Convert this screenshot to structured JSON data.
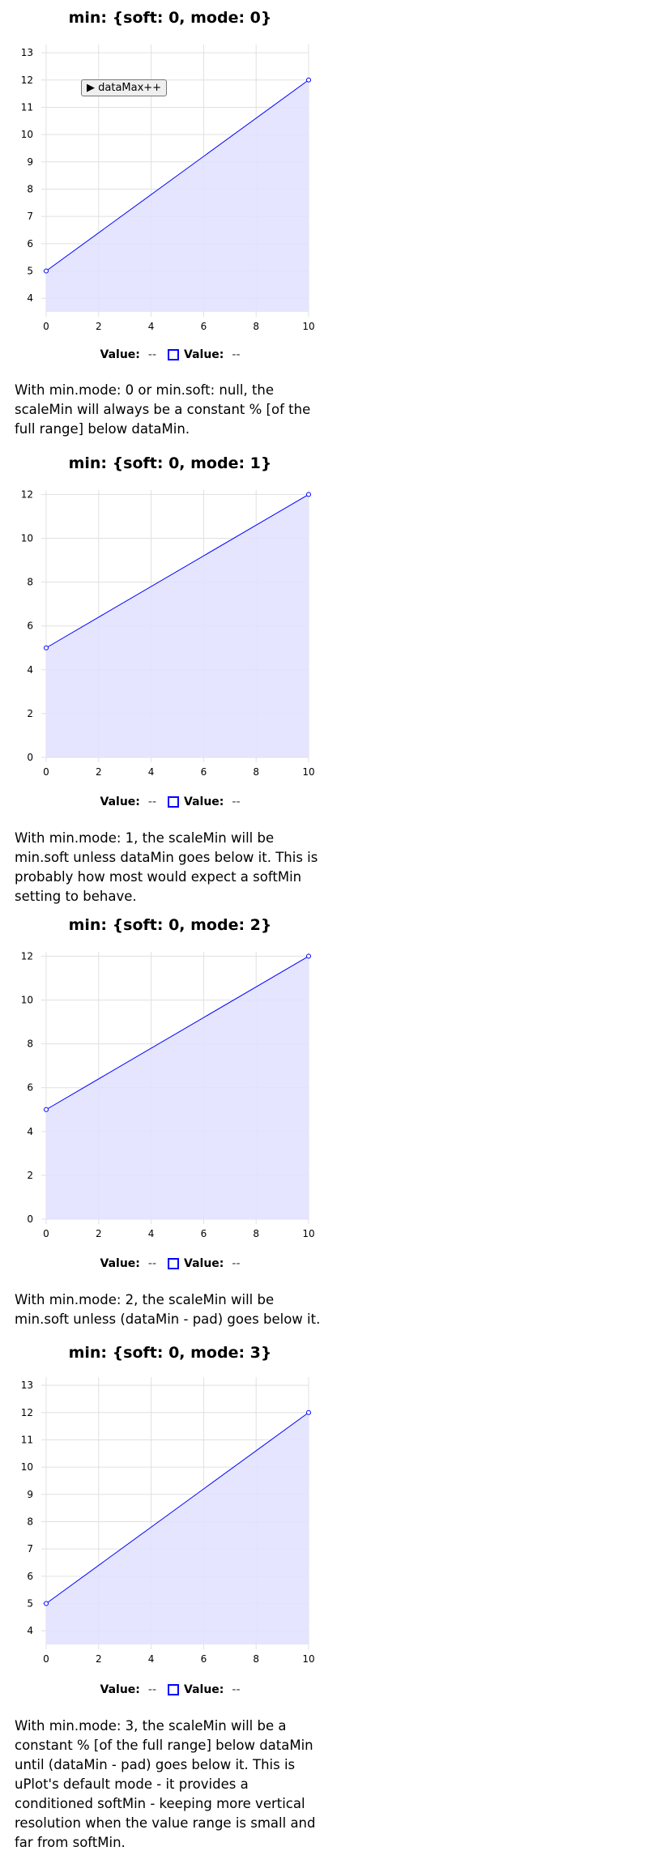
{
  "charts": [
    {
      "title": "min: {soft: 0, mode: 0}",
      "dm_button_label": "▶ dataMax++",
      "legend": {
        "x_label": "Value:",
        "x_value": "--",
        "y_label": "Value:",
        "y_value": "--"
      },
      "description": "With min.mode: 0 or min.soft: null, the scaleMin will always be a constant % [of the full range] below dataMin."
    },
    {
      "title": "min: {soft: 0, mode: 1}",
      "legend": {
        "x_label": "Value:",
        "x_value": "--",
        "y_label": "Value:",
        "y_value": "--"
      },
      "description": "With min.mode: 1, the scaleMin will be min.soft unless dataMin goes below it. This is probably how most would expect a softMin setting to behave."
    },
    {
      "title": "min: {soft: 0, mode: 2}",
      "legend": {
        "x_label": "Value:",
        "x_value": "--",
        "y_label": "Value:",
        "y_value": "--"
      },
      "description": "With min.mode: 2, the scaleMin will be min.soft unless (dataMin - pad) goes below it."
    },
    {
      "title": "min: {soft: 0, mode: 3}",
      "legend": {
        "x_label": "Value:",
        "x_value": "--",
        "y_label": "Value:",
        "y_value": "--"
      },
      "description": "With min.mode: 3, the scaleMin will be a constant % [of the full range] below dataMin until (dataMin - pad) goes below it. This is uPlot's default mode - it provides a conditioned softMin - keeping more vertical resolution when the value range is small and far from softMin."
    }
  ],
  "colors": {
    "series_stroke": "#0000ff",
    "series_fill": "#e0e0ff",
    "grid": "#e0e0e0"
  },
  "chart_data": [
    {
      "type": "area",
      "x": [
        0,
        10
      ],
      "series": [
        {
          "values": [
            5,
            12
          ]
        }
      ],
      "xlim": [
        0,
        10
      ],
      "ylim": [
        3.5,
        13.3
      ],
      "xticks": [
        0,
        2,
        4,
        6,
        8,
        10
      ],
      "yticks": [
        4,
        5,
        6,
        7,
        8,
        9,
        10,
        11,
        12,
        13
      ],
      "grid": true,
      "title": "min: {soft: 0, mode: 0}",
      "xlabel": "",
      "ylabel": ""
    },
    {
      "type": "area",
      "x": [
        0,
        10
      ],
      "series": [
        {
          "values": [
            5,
            12
          ]
        }
      ],
      "xlim": [
        0,
        10
      ],
      "ylim": [
        0,
        12.2
      ],
      "xticks": [
        0,
        2,
        4,
        6,
        8,
        10
      ],
      "yticks": [
        0,
        2,
        4,
        6,
        8,
        10,
        12
      ],
      "grid": true,
      "title": "min: {soft: 0, mode: 1}",
      "xlabel": "",
      "ylabel": ""
    },
    {
      "type": "area",
      "x": [
        0,
        10
      ],
      "series": [
        {
          "values": [
            5,
            12
          ]
        }
      ],
      "xlim": [
        0,
        10
      ],
      "ylim": [
        0,
        12.2
      ],
      "xticks": [
        0,
        2,
        4,
        6,
        8,
        10
      ],
      "yticks": [
        0,
        2,
        4,
        6,
        8,
        10,
        12
      ],
      "grid": true,
      "title": "min: {soft: 0, mode: 2}",
      "xlabel": "",
      "ylabel": ""
    },
    {
      "type": "area",
      "x": [
        0,
        10
      ],
      "series": [
        {
          "values": [
            5,
            12
          ]
        }
      ],
      "xlim": [
        0,
        10
      ],
      "ylim": [
        3.5,
        13.3
      ],
      "xticks": [
        0,
        2,
        4,
        6,
        8,
        10
      ],
      "yticks": [
        4,
        5,
        6,
        7,
        8,
        9,
        10,
        11,
        12,
        13
      ],
      "grid": true,
      "title": "min: {soft: 0, mode: 3}",
      "xlabel": "",
      "ylabel": ""
    }
  ]
}
